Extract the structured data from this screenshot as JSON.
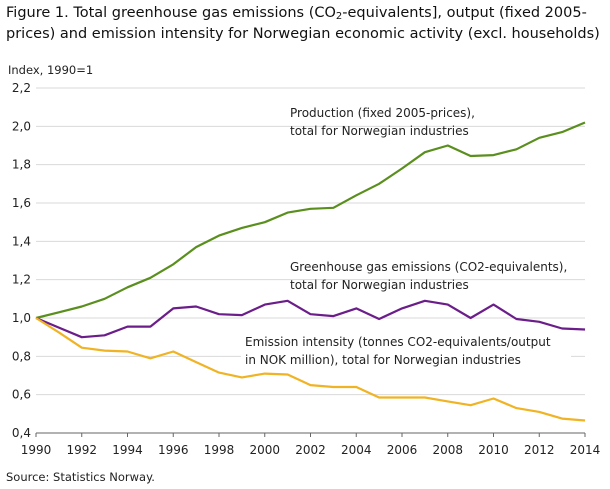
{
  "figure": {
    "title_part1": "Figure 1. Total greenhouse gas emissions (CO",
    "title_sub": "2",
    "title_part2": "-equivalents], output (fixed 2005-prices) and emission intensity for Norwegian economic activity (excl. households)",
    "source": "Source: Statistics Norway."
  },
  "chart_data": {
    "type": "line",
    "ylabel": "Index, 1990=1",
    "xlim": [
      1990,
      2014
    ],
    "ylim": [
      0.4,
      2.2
    ],
    "yticks": [
      0.4,
      0.6,
      0.8,
      1.0,
      1.2,
      1.4,
      1.6,
      1.8,
      2.0,
      2.2
    ],
    "ytick_labels": [
      "0,4",
      "0,6",
      "0,8",
      "1,0",
      "1,2",
      "1,4",
      "1,6",
      "1,8",
      "2,0",
      "2,2"
    ],
    "xticks": [
      1990,
      1992,
      1994,
      1996,
      1998,
      2000,
      2002,
      2004,
      2006,
      2008,
      2010,
      2012,
      2014
    ],
    "grid": "horizontal",
    "x": [
      1990,
      1991,
      1992,
      1993,
      1994,
      1995,
      1996,
      1997,
      1998,
      1999,
      2000,
      2001,
      2002,
      2003,
      2004,
      2005,
      2006,
      2007,
      2008,
      2009,
      2010,
      2011,
      2012,
      2013,
      2014
    ],
    "series": [
      {
        "color": "#5a8f1e",
        "annotation": [
          "Production (fixed 2005-prices),",
          "total for Norwegian industries"
        ],
        "values": [
          1.0,
          1.03,
          1.06,
          1.1,
          1.16,
          1.21,
          1.28,
          1.37,
          1.43,
          1.47,
          1.5,
          1.55,
          1.57,
          1.575,
          1.64,
          1.7,
          1.78,
          1.865,
          1.9,
          1.845,
          1.85,
          1.88,
          1.94,
          1.97,
          2.02
        ]
      },
      {
        "color": "#6b1d8a",
        "annotation": [
          "Greenhouse  gas emissions (CO2-equivalents),",
          "total for Norwegian industries"
        ],
        "values": [
          1.0,
          0.95,
          0.9,
          0.91,
          0.955,
          0.955,
          1.05,
          1.06,
          1.02,
          1.015,
          1.07,
          1.09,
          1.02,
          1.01,
          1.05,
          0.995,
          1.05,
          1.09,
          1.07,
          1.0,
          1.07,
          0.995,
          0.98,
          0.945,
          0.94
        ]
      },
      {
        "color": "#f0b323",
        "annotation": [
          "Emission  intensity  (tonnes CO2-equivalents/output",
          "in NOK million), total for Norwegian industries"
        ],
        "values": [
          1.0,
          0.925,
          0.845,
          0.83,
          0.825,
          0.79,
          0.825,
          0.77,
          0.715,
          0.69,
          0.71,
          0.705,
          0.65,
          0.64,
          0.64,
          0.585,
          0.585,
          0.585,
          0.565,
          0.545,
          0.58,
          0.53,
          0.51,
          0.475,
          0.465
        ]
      }
    ]
  }
}
